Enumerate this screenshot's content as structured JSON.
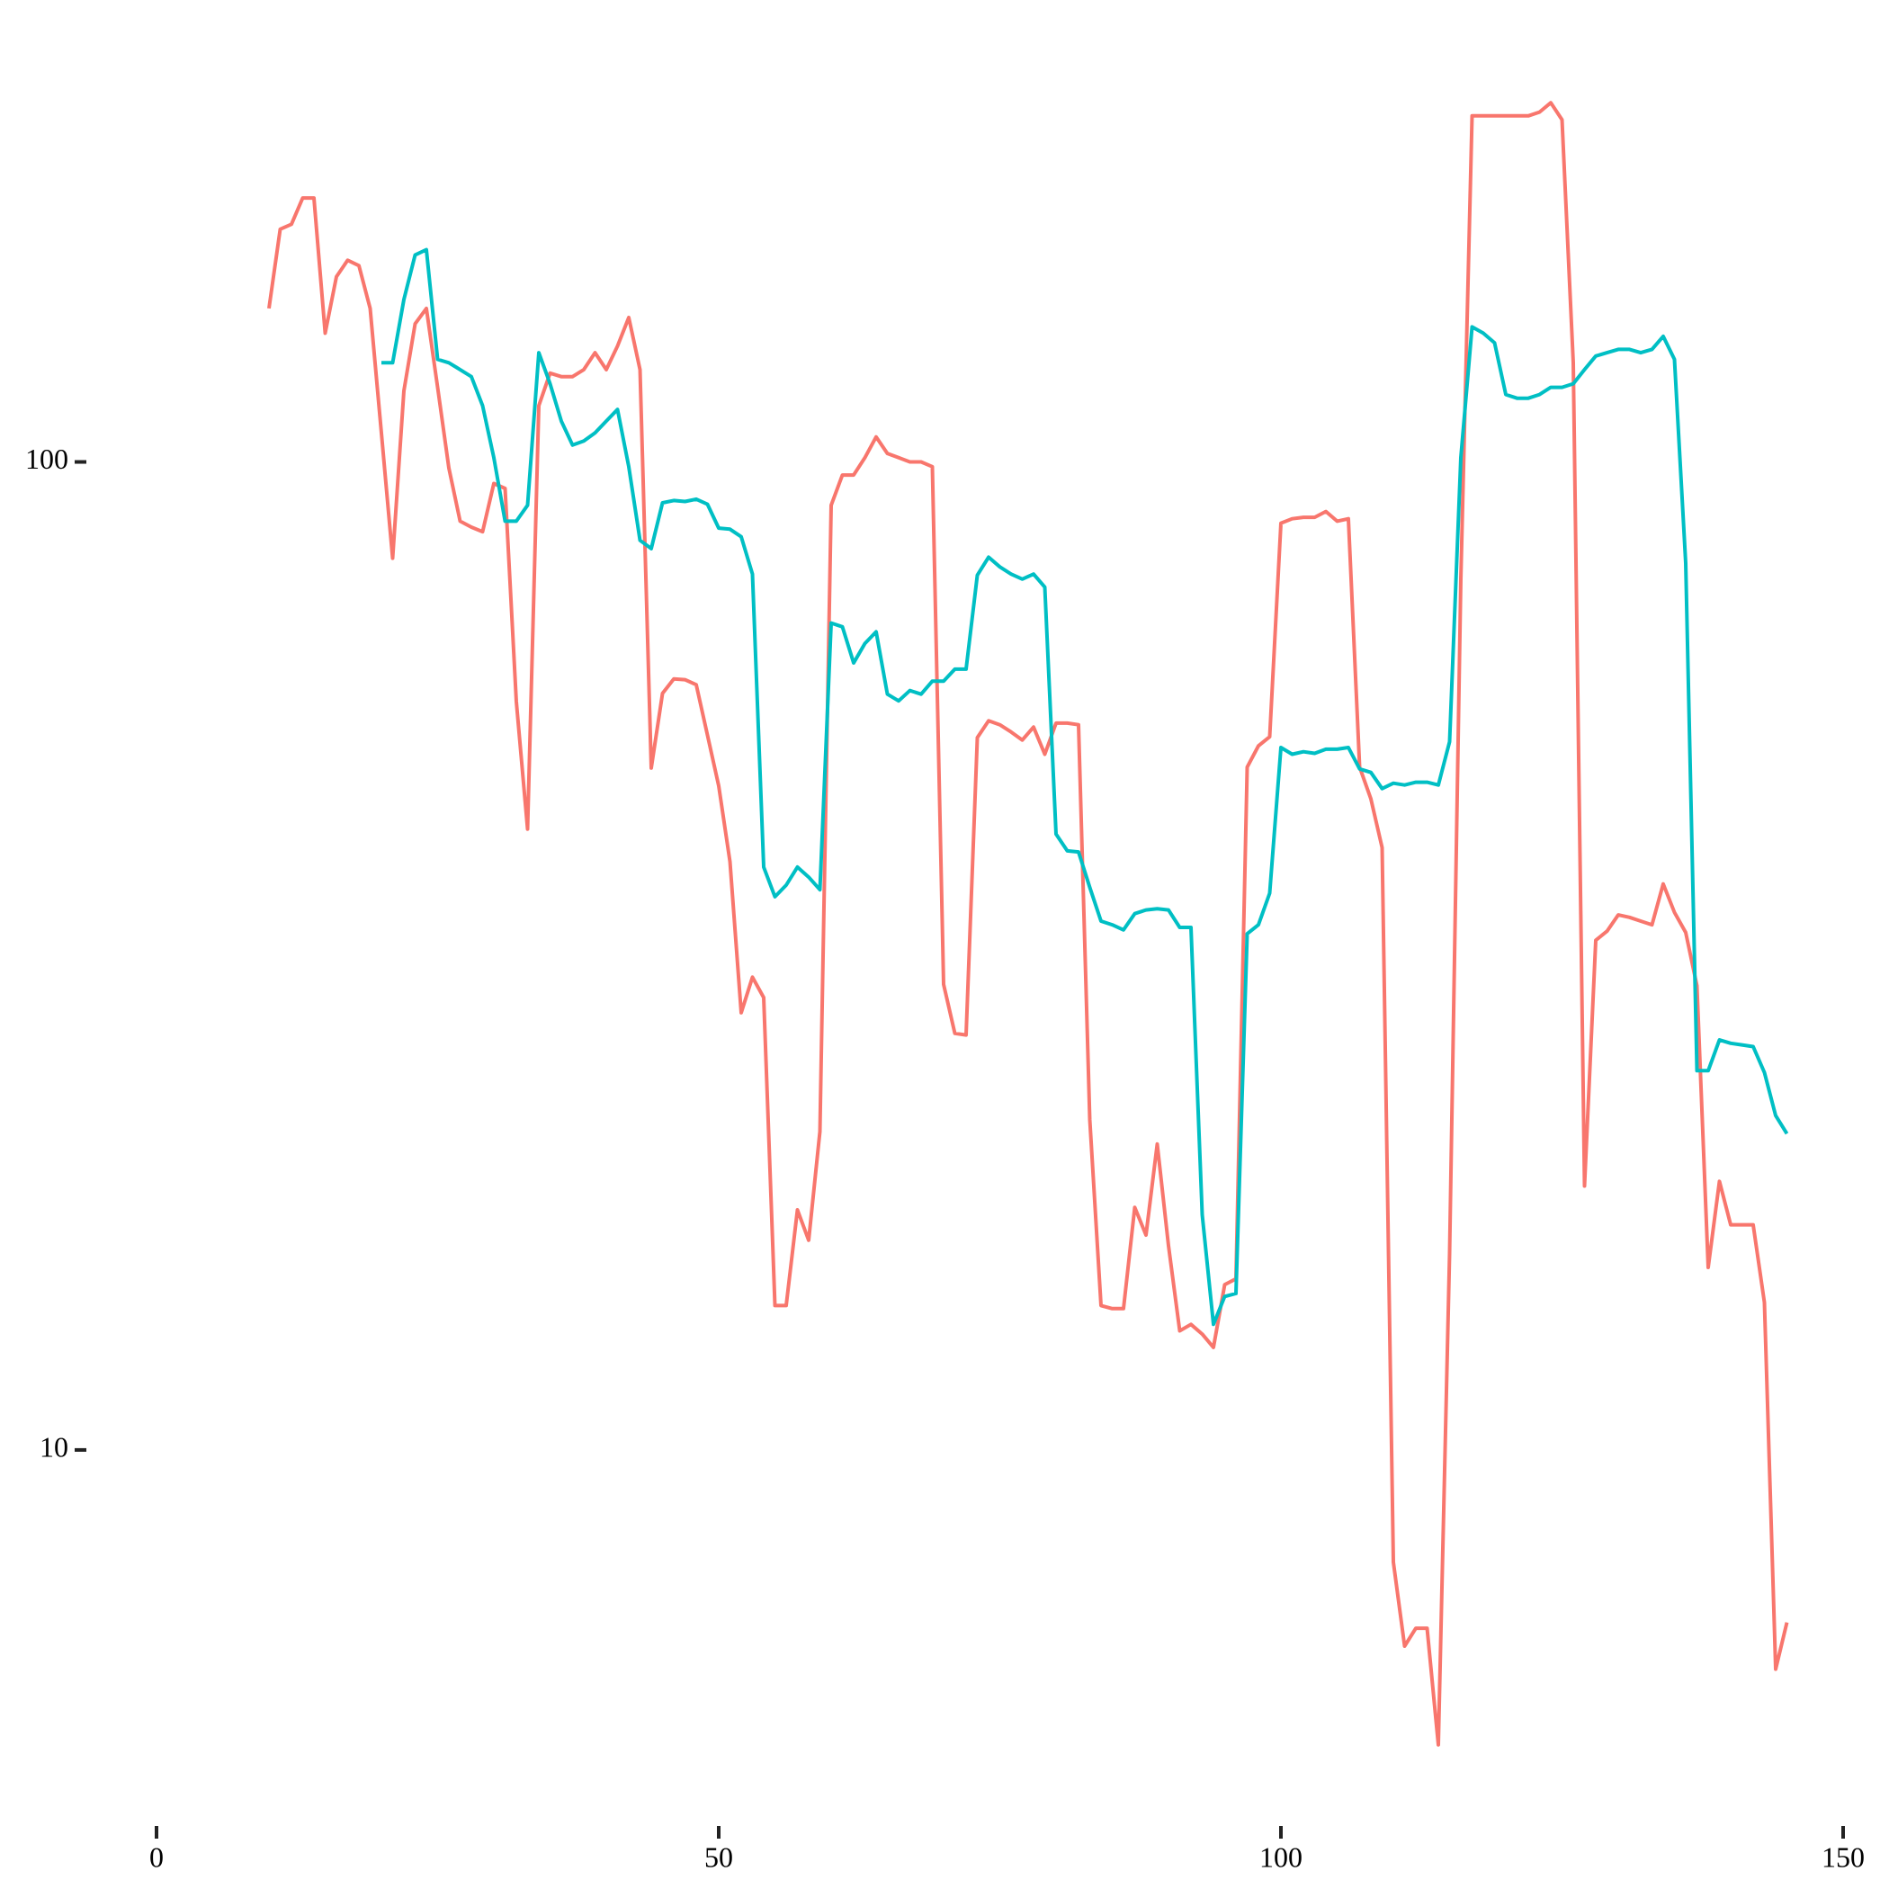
{
  "chart_data": {
    "type": "line",
    "log_y": true,
    "grid": false,
    "x": [
      10,
      11,
      12,
      13,
      14,
      15,
      16,
      17,
      18,
      19,
      20,
      21,
      22,
      23,
      24,
      25,
      26,
      27,
      28,
      29,
      30,
      31,
      32,
      33,
      34,
      35,
      36,
      37,
      38,
      39,
      40,
      41,
      42,
      43,
      44,
      45,
      46,
      47,
      48,
      49,
      50,
      51,
      52,
      53,
      54,
      55,
      56,
      57,
      58,
      59,
      60,
      61,
      62,
      63,
      64,
      65,
      66,
      67,
      68,
      69,
      70,
      71,
      72,
      73,
      74,
      75,
      76,
      77,
      78,
      79,
      80,
      81,
      82,
      83,
      84,
      85,
      86,
      87,
      88,
      89,
      90,
      91,
      92,
      93,
      94,
      95,
      96,
      97,
      98,
      99,
      100,
      101,
      102,
      103,
      104,
      105,
      106,
      107,
      108,
      109,
      110,
      111,
      112,
      113,
      114,
      115,
      116,
      117,
      118,
      119,
      120,
      121,
      122,
      123,
      124,
      125,
      126,
      127,
      128,
      129,
      130,
      131,
      132,
      133,
      134,
      135,
      136,
      137,
      138,
      139,
      140,
      141,
      142,
      143,
      144,
      145
    ],
    "series": [
      {
        "color": "#F8766D",
        "values": [
          143,
          172,
          174,
          185,
          185,
          135,
          154,
          160,
          158,
          143,
          107,
          79.9,
          118,
          138,
          143,
          119,
          98.6,
          87.1,
          85.9,
          85,
          95.1,
          94,
          57.2,
          42.5,
          114,
          123,
          122,
          122,
          124,
          129,
          124,
          131,
          140,
          124,
          49,
          58.3,
          60.3,
          60.2,
          59.5,
          52.9,
          47,
          39.4,
          27.7,
          30.1,
          28.7,
          14,
          14,
          17.5,
          16.3,
          21,
          90.4,
          97,
          97,
          101,
          106,
          102,
          101,
          100,
          100,
          98.9,
          29.6,
          26.4,
          26.3,
          52.6,
          54.7,
          54.2,
          53.3,
          52.3,
          53.9,
          50.6,
          54.4,
          54.4,
          54.2,
          21.6,
          14,
          13.9,
          13.9,
          17.6,
          16.5,
          20.4,
          16.1,
          13.2,
          13.4,
          13.1,
          12.7,
          14.7,
          14.9,
          49.1,
          51.6,
          52.7,
          86.7,
          87.6,
          87.9,
          87.9,
          89.1,
          87.1,
          87.6,
          49.1,
          45.6,
          40.7,
          7.7,
          6.33,
          6.6,
          6.6,
          5.03,
          15.8,
          76.1,
          224,
          224,
          224,
          224,
          224,
          224,
          226,
          231,
          222,
          126,
          18.5,
          32.8,
          33.5,
          34.8,
          34.6,
          34.3,
          34,
          37.4,
          35,
          33.4,
          29.5,
          15.3,
          18.7,
          16.9,
          16.9,
          16.9,
          14.1,
          6,
          6.69
        ]
      },
      {
        "color": "#00BFC4",
        "values": [
          null,
          null,
          null,
          null,
          null,
          null,
          null,
          null,
          null,
          null,
          126,
          126,
          146,
          162,
          164,
          127,
          126,
          124,
          122,
          114,
          101,
          87.1,
          87.1,
          90.4,
          129,
          120,
          110,
          104,
          105,
          107,
          110,
          113,
          98.9,
          83.3,
          81.7,
          90.9,
          91.4,
          91.2,
          91.7,
          90.6,
          85.7,
          85.5,
          84,
          77,
          38.9,
          36.3,
          37.3,
          38.9,
          38,
          36.9,
          68.7,
          68.1,
          62.6,
          65.5,
          67.3,
          58.2,
          57.3,
          58.7,
          58.2,
          60,
          60,
          61.7,
          61.7,
          76.8,
          80.1,
          78.3,
          77,
          76.1,
          77,
          74.7,
          42,
          40.4,
          40.3,
          37.1,
          34.3,
          34,
          33.6,
          34.9,
          35.2,
          35.3,
          35.2,
          33.8,
          33.8,
          17.3,
          13.4,
          14.3,
          14.4,
          33.3,
          34,
          36.6,
          51.4,
          50.6,
          50.9,
          50.7,
          51.2,
          51.2,
          51.4,
          48.9,
          48.5,
          46.7,
          47.3,
          47.1,
          47.4,
          47.4,
          47.1,
          52.1,
          101,
          137,
          135,
          132,
          117,
          116,
          116,
          117,
          119,
          119,
          120,
          124,
          128,
          129,
          130,
          130,
          129,
          130,
          134,
          127,
          79,
          24.2,
          24.2,
          26,
          25.8,
          25.7,
          25.6,
          24.1,
          21.8,
          20.9
        ]
      }
    ],
    "xlim": [
      0,
      150
    ],
    "xticks": [
      0,
      50,
      100,
      150
    ],
    "ylim": [
      4.47,
      255
    ],
    "yticks": [
      10,
      100
    ]
  }
}
